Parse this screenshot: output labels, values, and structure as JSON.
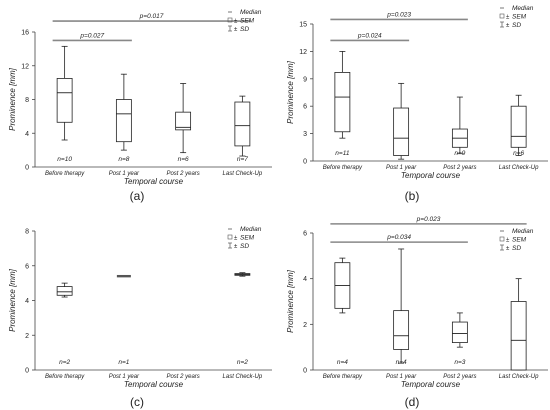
{
  "chart_data": [
    {
      "panel": "(a)",
      "type": "box",
      "ylabel": "Prominence [mm]",
      "xlabel": "Temporal course",
      "ylim": [
        0,
        16
      ],
      "yticks": [
        "0",
        "4",
        "8",
        "12",
        "16"
      ],
      "yticks_v": [
        0,
        4,
        8,
        12,
        16
      ],
      "categories": [
        "Before therapy",
        "Post 1 year",
        "Post 2 years",
        "Last Check-Up"
      ],
      "n_labels": [
        "n=10",
        "n=8",
        "n=6",
        "n=7"
      ],
      "boxes": [
        {
          "whisker_low": 3.2,
          "q1": 5.3,
          "median": 8.8,
          "q3": 10.5,
          "whisker_high": 14.3
        },
        {
          "whisker_low": 2.0,
          "q1": 3.0,
          "median": 6.3,
          "q3": 8.0,
          "whisker_high": 11.0
        },
        {
          "whisker_low": 1.7,
          "q1": 4.4,
          "median": 4.7,
          "q3": 6.5,
          "whisker_high": 9.9
        },
        {
          "whisker_low": 1.3,
          "q1": 2.5,
          "median": 4.9,
          "q3": 7.7,
          "whisker_high": 8.4
        }
      ],
      "significance": [
        {
          "label": "p=0.017",
          "from": 0,
          "to": 3,
          "level": 17.3
        },
        {
          "label": "p=0.027",
          "from": 0,
          "to": 1,
          "level": 15.0
        }
      ],
      "legend": {
        "median": "Median",
        "sem": "SEM",
        "sd": "SD"
      }
    },
    {
      "panel": "(b)",
      "type": "box",
      "ylabel": "Prominence [mm]",
      "xlabel": "Temporal course",
      "ylim": [
        0,
        15
      ],
      "yticks": [
        "0",
        "3",
        "6",
        "9",
        "12",
        "15"
      ],
      "yticks_v": [
        0,
        3,
        6,
        9,
        12,
        15
      ],
      "categories": [
        "Before therapy",
        "Post 1 year",
        "Post 2 years",
        "Last Check-Up"
      ],
      "n_labels": [
        "n=11",
        "n=10",
        "n=9",
        "n=6"
      ],
      "boxes": [
        {
          "whisker_low": 2.5,
          "q1": 3.2,
          "median": 7.0,
          "q3": 9.7,
          "whisker_high": 12.0
        },
        {
          "whisker_low": 0.2,
          "q1": 0.6,
          "median": 2.5,
          "q3": 5.8,
          "whisker_high": 8.5
        },
        {
          "whisker_low": 0.8,
          "q1": 1.5,
          "median": 2.5,
          "q3": 3.5,
          "whisker_high": 7.0
        },
        {
          "whisker_low": 0.6,
          "q1": 1.5,
          "median": 2.7,
          "q3": 6.0,
          "whisker_high": 7.2
        }
      ],
      "significance": [
        {
          "label": "p=0.023",
          "from": 0,
          "to": 2,
          "level": 15.5
        },
        {
          "label": "p=0.024",
          "from": 0,
          "to": 1,
          "level": 13.2
        }
      ],
      "legend": {
        "median": "Median",
        "sem": "SEM",
        "sd": "SD"
      }
    },
    {
      "panel": "(c)",
      "type": "box",
      "ylabel": "Prominence [mm]",
      "xlabel": "Temporal course",
      "ylim": [
        0,
        8
      ],
      "yticks": [
        "0",
        "2",
        "4",
        "6",
        "8"
      ],
      "yticks_v": [
        0,
        2,
        4,
        6,
        8
      ],
      "categories": [
        "Before therapy",
        "Post 1 year",
        "Post 2 years",
        "Last Check-Up"
      ],
      "n_labels": [
        "n=2",
        "n=1",
        "",
        "n=2"
      ],
      "boxes": [
        {
          "whisker_low": 4.2,
          "q1": 4.3,
          "median": 4.5,
          "q3": 4.8,
          "whisker_high": 5.0
        },
        {
          "whisker_low": 5.4,
          "q1": 5.4,
          "median": 5.4,
          "q3": 5.4,
          "whisker_high": 5.4
        },
        null,
        {
          "whisker_low": 5.4,
          "q1": 5.45,
          "median": 5.5,
          "q3": 5.55,
          "whisker_high": 5.6
        }
      ],
      "significance": [],
      "legend": {
        "median": "Median",
        "sem": "SEM",
        "sd": "SD"
      }
    },
    {
      "panel": "(d)",
      "type": "box",
      "ylabel": "Prominence [mm]",
      "xlabel": "Temporal course",
      "ylim": [
        0,
        6
      ],
      "yticks": [
        "0",
        "2",
        "4",
        "6"
      ],
      "yticks_v": [
        0,
        2,
        4,
        6
      ],
      "categories": [
        "Before therapy",
        "Post 1 year",
        "Post 2 years",
        "Last Check-Up"
      ],
      "n_labels": [
        "n=4",
        "n=4",
        "n=3",
        "n=4"
      ],
      "boxes": [
        {
          "whisker_low": 2.5,
          "q1": 2.7,
          "median": 3.7,
          "q3": 4.7,
          "whisker_high": 4.9
        },
        {
          "whisker_low": 0.3,
          "q1": 0.9,
          "median": 1.5,
          "q3": 2.6,
          "whisker_high": 5.3
        },
        {
          "whisker_low": 1.0,
          "q1": 1.2,
          "median": 1.6,
          "q3": 2.1,
          "whisker_high": 2.5
        },
        {
          "whisker_low": 0.0,
          "q1": 0.0,
          "median": 1.3,
          "q3": 3.0,
          "whisker_high": 4.0
        }
      ],
      "significance": [
        {
          "label": "p=0.023",
          "from": 0,
          "to": 3,
          "level": 6.4
        },
        {
          "label": "p=0.034",
          "from": 0,
          "to": 2,
          "level": 5.6
        }
      ],
      "legend": {
        "median": "Median",
        "sem": "SEM",
        "sd": "SD"
      }
    }
  ]
}
